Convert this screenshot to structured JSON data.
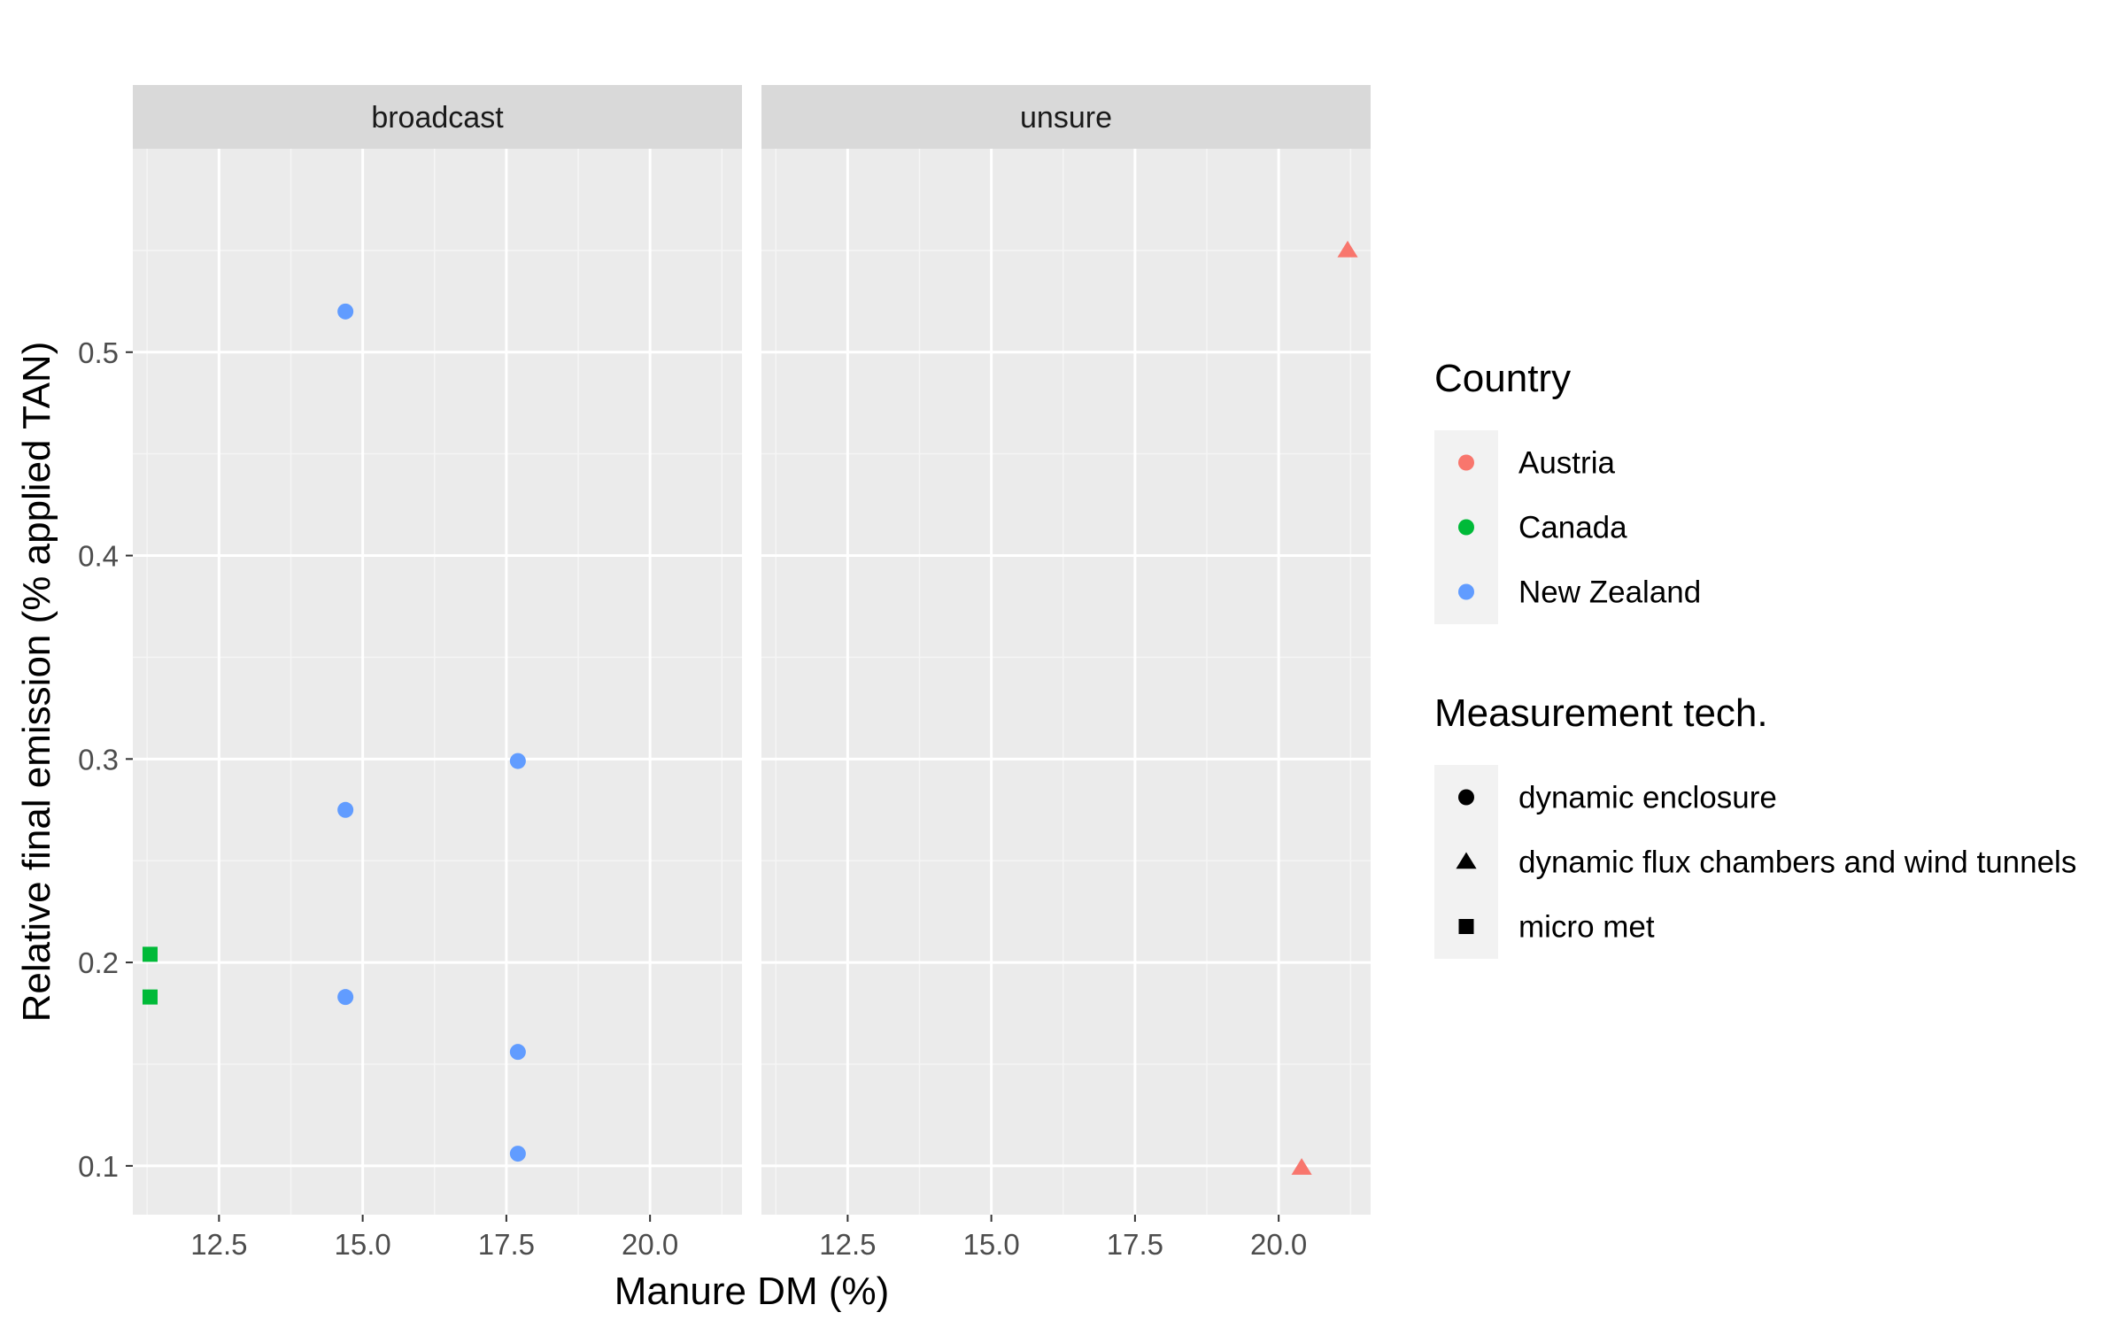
{
  "chart_data": {
    "type": "scatter",
    "facets": [
      "broadcast",
      "unsure"
    ],
    "xlabel": "Manure DM (%)",
    "ylabel": "Relative final emission (% applied TAN)",
    "xlim": [
      11.0,
      21.6
    ],
    "ylim": [
      0.076,
      0.6
    ],
    "x_ticks": [
      12.5,
      15.0,
      17.5,
      20.0
    ],
    "x_tick_labels": [
      "12.5",
      "15.0",
      "17.5",
      "20.0"
    ],
    "y_ticks": [
      0.1,
      0.2,
      0.3,
      0.4,
      0.5
    ],
    "y_tick_labels": [
      "0.1",
      "0.2",
      "0.3",
      "0.4",
      "0.5"
    ],
    "grid": true,
    "legend_position": "right",
    "color_legend": {
      "title": "Country",
      "entries": [
        {
          "label": "Austria",
          "color": "#F8766D"
        },
        {
          "label": "Canada",
          "color": "#00BA38"
        },
        {
          "label": "New Zealand",
          "color": "#619CFF"
        }
      ]
    },
    "shape_legend": {
      "title": "Measurement tech.",
      "entries": [
        {
          "label": "dynamic enclosure",
          "shape": "circle"
        },
        {
          "label": "dynamic flux chambers and wind tunnels",
          "shape": "triangle"
        },
        {
          "label": "micro met",
          "shape": "square"
        }
      ]
    },
    "points": [
      {
        "facet": "broadcast",
        "x": 14.7,
        "y": 0.52,
        "country": "New Zealand",
        "tech": "dynamic enclosure"
      },
      {
        "facet": "broadcast",
        "x": 17.7,
        "y": 0.299,
        "country": "New Zealand",
        "tech": "dynamic enclosure"
      },
      {
        "facet": "broadcast",
        "x": 14.7,
        "y": 0.275,
        "country": "New Zealand",
        "tech": "dynamic enclosure"
      },
      {
        "facet": "broadcast",
        "x": 14.7,
        "y": 0.183,
        "country": "New Zealand",
        "tech": "dynamic enclosure"
      },
      {
        "facet": "broadcast",
        "x": 17.7,
        "y": 0.156,
        "country": "New Zealand",
        "tech": "dynamic enclosure"
      },
      {
        "facet": "broadcast",
        "x": 17.7,
        "y": 0.106,
        "country": "New Zealand",
        "tech": "dynamic enclosure"
      },
      {
        "facet": "broadcast",
        "x": 11.3,
        "y": 0.204,
        "country": "Canada",
        "tech": "micro met"
      },
      {
        "facet": "broadcast",
        "x": 11.3,
        "y": 0.183,
        "country": "Canada",
        "tech": "micro met"
      },
      {
        "facet": "unsure",
        "x": 21.2,
        "y": 0.55,
        "country": "Austria",
        "tech": "dynamic flux chambers and wind tunnels"
      },
      {
        "facet": "unsure",
        "x": 20.4,
        "y": 0.099,
        "country": "Austria",
        "tech": "dynamic flux chambers and wind tunnels"
      }
    ]
  }
}
